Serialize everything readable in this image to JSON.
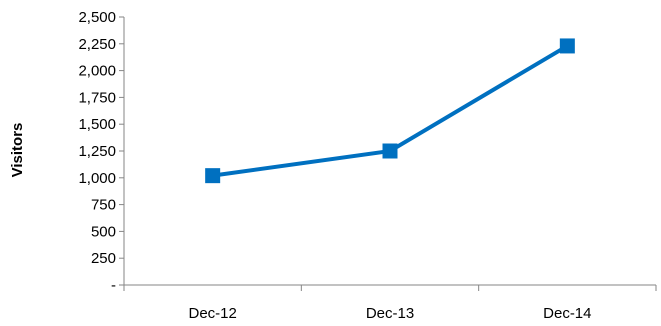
{
  "chart_data": {
    "type": "line",
    "title": "",
    "xlabel": "",
    "ylabel": "Visitors",
    "categories": [
      "Dec-12",
      "Dec-13",
      "Dec-14"
    ],
    "series": [
      {
        "values": [
          1020,
          1250,
          2230
        ],
        "color": "#0070C0",
        "marker": "square"
      }
    ],
    "ylim": [
      0,
      2500
    ],
    "yticks": [
      0,
      250,
      500,
      750,
      1000,
      1250,
      1500,
      1750,
      2000,
      2250,
      2500
    ],
    "ytick_labels": [
      "-",
      "250",
      "500",
      "750",
      "1,000",
      "1,250",
      "1,500",
      "1,750",
      "2,000",
      "2,250",
      "2,500"
    ],
    "grid": false,
    "legend": "none"
  }
}
